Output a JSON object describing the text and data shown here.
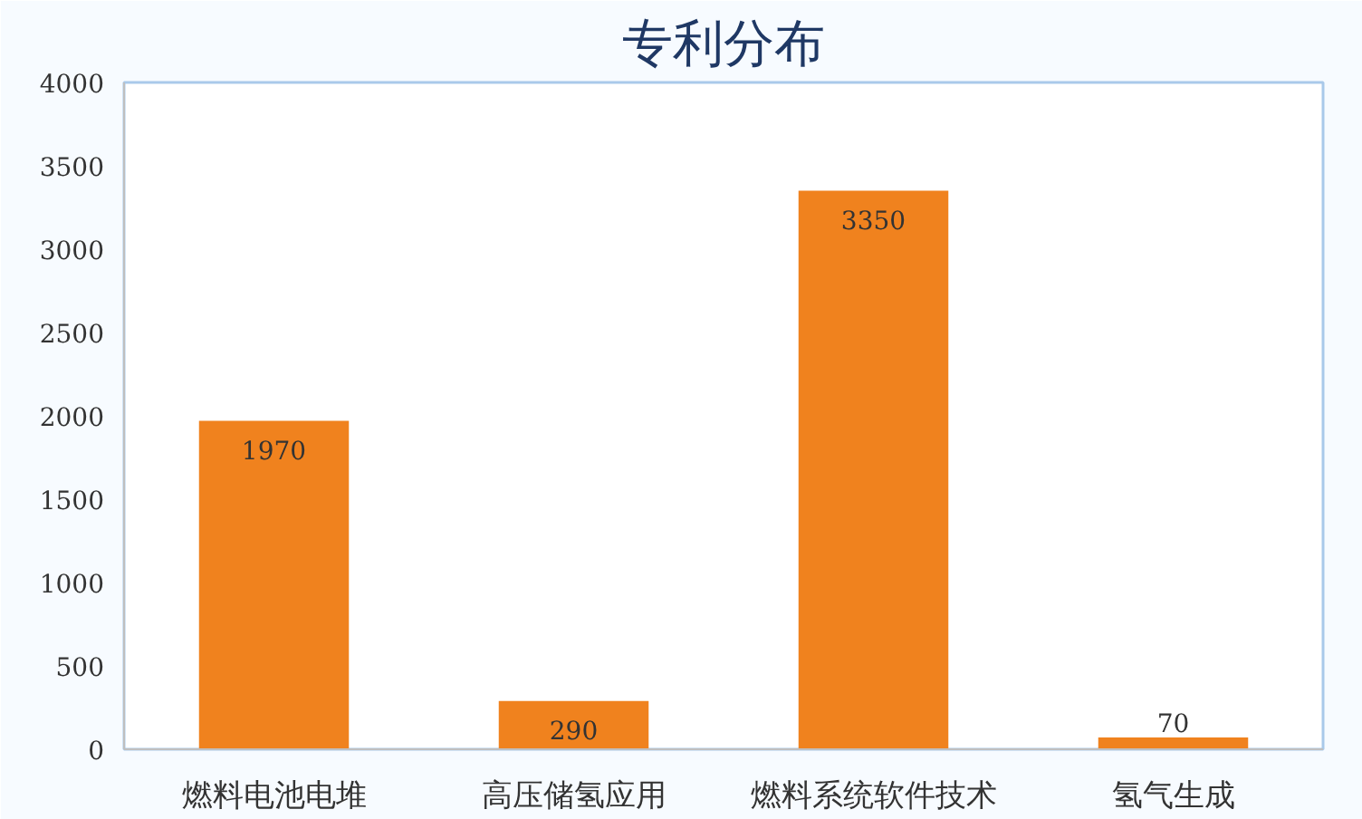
{
  "chart_data": {
    "type": "bar",
    "title": "专利分布",
    "categories": [
      "燃料电池电堆",
      "高压储氢应用",
      "燃料系统软件技术",
      "氢气生成"
    ],
    "values": [
      1970,
      290,
      3350,
      70
    ],
    "color": "#f0821e",
    "ylim": [
      0,
      4000
    ],
    "yticks": [
      0,
      500,
      1000,
      1500,
      2000,
      2500,
      3000,
      3500,
      4000
    ],
    "data_labels": true
  }
}
